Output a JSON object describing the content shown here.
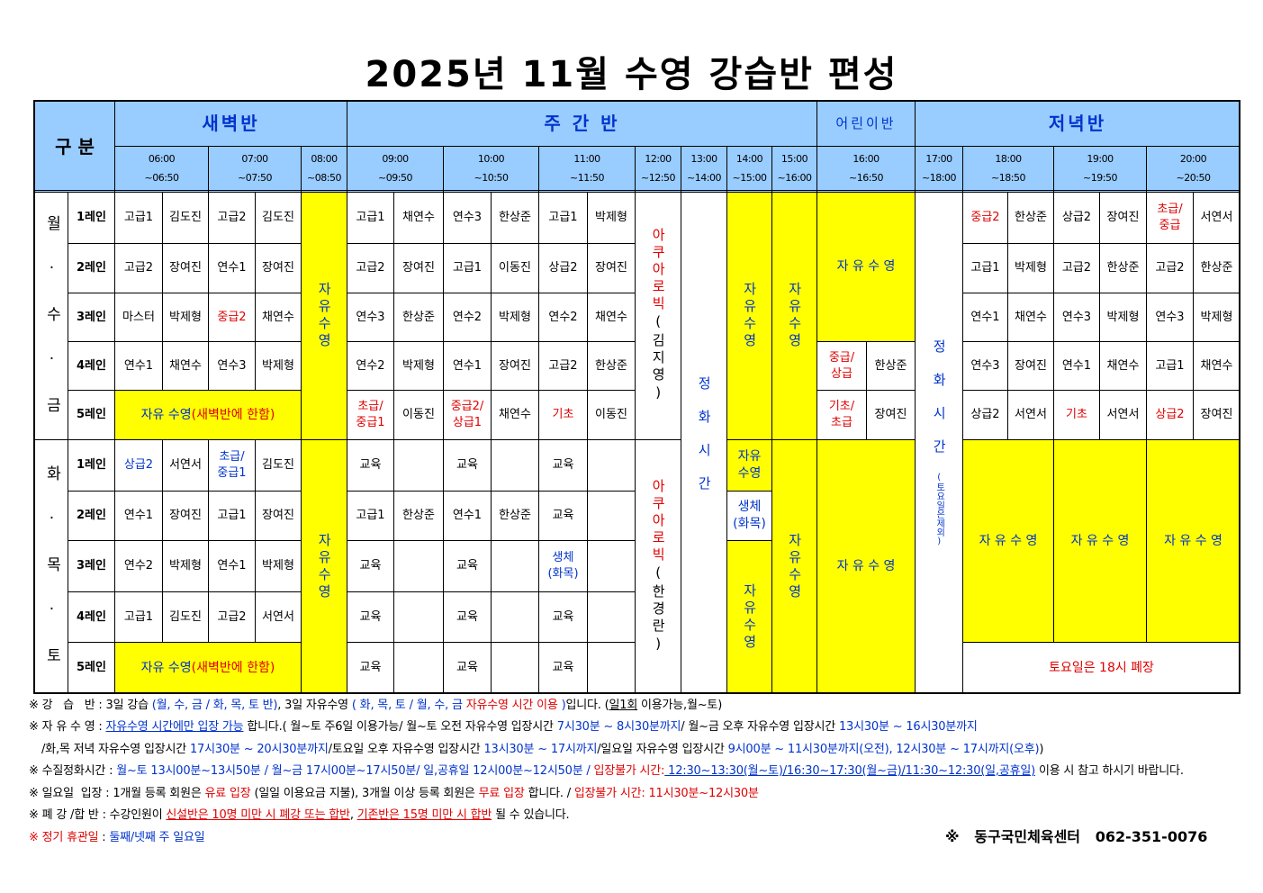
{
  "title": "2025년 11월 수영 강습반 편성",
  "header": {
    "category": "구 분",
    "sessions": [
      "새벽반",
      "주 간 반",
      "어린이반",
      "저녁반"
    ],
    "times": [
      {
        "start": "06:00",
        "end": "~06:50"
      },
      {
        "start": "07:00",
        "end": "~07:50"
      },
      {
        "start": "08:00",
        "end": "~08:50"
      },
      {
        "start": "09:00",
        "end": "~09:50"
      },
      {
        "start": "10:00",
        "end": "~10:50"
      },
      {
        "start": "11:00",
        "end": "~11:50"
      },
      {
        "start": "12:00",
        "end": "~12:50"
      },
      {
        "start": "13:00",
        "end": "~14:00"
      },
      {
        "start": "14:00",
        "end": "~15:00"
      },
      {
        "start": "15:00",
        "end": "~16:00"
      },
      {
        "start": "16:00",
        "end": "~16:50"
      },
      {
        "start": "17:00",
        "end": "~18:00"
      },
      {
        "start": "18:00",
        "end": "~18:50"
      },
      {
        "start": "19:00",
        "end": "~19:50"
      },
      {
        "start": "20:00",
        "end": "~20:50"
      }
    ]
  },
  "lanes": [
    "1레인",
    "2레인",
    "3레인",
    "4레인",
    "5레인"
  ],
  "groups": [
    {
      "days": "월 · 수 · 금",
      "rows": [
        [
          "고급1",
          "김도진",
          "고급2",
          "김도진",
          "고급1",
          "채연수",
          "연수3",
          "한상준",
          "고급1",
          "박제형",
          {
            "text": "중급2",
            "color": "#e00000"
          },
          "한상준",
          "상급2",
          "장여진",
          {
            "text": "초급/\n중급",
            "color": "#e00000"
          },
          "서연서"
        ],
        [
          "고급2",
          "장여진",
          "연수1",
          "장여진",
          "고급2",
          "장여진",
          "고급1",
          "이동진",
          "상급2",
          "장여진",
          "고급1",
          "박제형",
          "고급2",
          "한상준",
          "고급2",
          "한상준"
        ],
        [
          "마스터",
          "박제형",
          {
            "text": "중급2",
            "color": "#e00000"
          },
          "채연수",
          "연수3",
          "한상준",
          "연수2",
          "박제형",
          "연수2",
          "채연수",
          "연수1",
          "채연수",
          "연수3",
          "박제형",
          "연수3",
          "박제형"
        ],
        [
          "연수1",
          "채연수",
          "연수3",
          "박제형",
          "연수2",
          "박제형",
          "연수1",
          "장여진",
          "고급2",
          "한상준",
          {
            "text": "중급/\n상급",
            "color": "#e00000"
          },
          "한상준",
          "연수3",
          "장여진",
          "연수1",
          "채연수",
          "고급1",
          "채연수"
        ],
        [
          {
            "text": "초급/\n중급1",
            "color": "#e00000"
          },
          "이동진",
          {
            "text": "중급2/\n상급1",
            "color": "#e00000"
          },
          "채연수",
          {
            "text": "기초",
            "color": "#e00000"
          },
          "이동진",
          {
            "text": "기초/\n초급",
            "color": "#e00000"
          },
          "장여진",
          "상급2",
          "서연서",
          {
            "text": "기초",
            "color": "#e00000"
          },
          "서연서",
          {
            "text": "상급2",
            "color": "#e00000"
          },
          "장여진"
        ]
      ]
    },
    {
      "days": "화 · 목 · 토",
      "rows": [
        [
          {
            "text": "상급2",
            "color": "#0033cc"
          },
          "서연서",
          {
            "text": "초급/\n중급1",
            "color": "#0033cc"
          },
          "김도진",
          "교육",
          null,
          "교육",
          null,
          "교육",
          null
        ],
        [
          "연수1",
          "장여진",
          "고급1",
          "장여진",
          "고급1",
          "한상준",
          "연수1",
          "한상준",
          "교육",
          null
        ],
        [
          "연수2",
          "박제형",
          "연수1",
          "박제형",
          "교육",
          null,
          "교육",
          null,
          {
            "text": "생체\n(화목)",
            "color": "#0033cc"
          },
          null
        ],
        [
          "고급1",
          "김도진",
          "고급2",
          "서연서",
          "교육",
          null,
          "교육",
          null,
          "교육",
          null
        ],
        [
          "교육",
          null,
          "교육",
          null,
          "교육",
          null
        ]
      ]
    }
  ],
  "merged": [
    {
      "content": "자유수영",
      "color": "#0033cc"
    },
    {
      "content": [
        {
          "text": "아쿠아로빅",
          "color": "#e00000"
        },
        {
          "text": "(김지영)"
        }
      ]
    },
    {
      "content": "정화시간",
      "color": "#0033cc"
    },
    {
      "content": "자유수영",
      "color": "#0033cc"
    },
    {
      "content": "자유수영",
      "color": "#0033cc"
    },
    {
      "content": "자 유 수 영",
      "color": "#0033cc"
    },
    {
      "content": [
        {
          "text": "정화시간",
          "color": "#0033cc"
        },
        {
          "text": "(토요일은제외)",
          "color": "#0033cc",
          "small": true
        }
      ]
    },
    {
      "content": [
        {
          "text": "자유 수영 ",
          "color": "#0033cc"
        },
        {
          "text": "(새벽반에 한함)",
          "color": "#e00000"
        }
      ]
    },
    {
      "content": "자유수영",
      "color": "#0033cc"
    },
    {
      "content": [
        {
          "text": "아쿠아로빅",
          "color": "#e00000"
        },
        {
          "text": "(한경란)"
        }
      ]
    },
    {
      "content": "자유\n수영",
      "color": "#0033cc"
    },
    {
      "content": "생체\n(화목)",
      "color": "#0033cc"
    },
    {
      "content": "자유수영",
      "color": "#0033cc"
    },
    {
      "content": "자유수영",
      "color": "#0033cc"
    },
    {
      "content": "자 유 수 영",
      "color": "#0033cc"
    },
    {
      "content": "자 유 수 영",
      "color": "#0033cc"
    },
    {
      "content": "자 유 수 영",
      "color": "#0033cc"
    },
    {
      "content": "자 유 수 영",
      "color": "#0033cc"
    },
    {
      "content": [
        {
          "text": "자유 수영 ",
          "color": "#0033cc"
        },
        {
          "text": "(새벽반에 한함)",
          "color": "#e00000"
        }
      ]
    },
    {
      "content": "토요일은 18시 폐장",
      "color": "#e00000"
    }
  ],
  "notes": [
    [
      "※ 강   습   반 : 3일 강습 ",
      {
        "text": "(월, 수, 금 / 화, 목, 토 반)",
        "color": "#0033cc"
      },
      ", 3일 자유수영 ",
      {
        "text": "( 화, 목, 토 / 월, 수, 금 ",
        "color": "#0033cc"
      },
      {
        "text": "자유수영 시간 이용",
        "color": "#e00000"
      },
      {
        "text": " )",
        "color": "#0033cc"
      },
      "입니다. (",
      {
        "text": "일1회",
        "underline": true
      },
      " 이용가능,월~토)"
    ],
    [
      "※ 자 유 수 영 : ",
      {
        "text": "자유수영 시간에만 입장 가능",
        "color": "#0033cc",
        "underline": true
      },
      " 합니다.( 월~토 주6일 이용가능/ 월~토 오전 자유수영 입장시간 ",
      {
        "text": "7시30분 ~ 8시30분까지",
        "color": "#0033cc"
      },
      "/ 월~금 오후 자유수영 입장시간 ",
      {
        "text": "13시30분 ~ 16시30분까지",
        "color": "#0033cc"
      }
    ],
    [
      "/화,목 저녁 자유수영 입장시간 ",
      {
        "text": "17시30분 ~ 20시30분까지",
        "color": "#0033cc"
      },
      "/토요일 오후 자유수영 입장시간 ",
      {
        "text": "13시30분 ~ 17시까지",
        "color": "#0033cc"
      },
      "/일요일 자유수영 입장시간 ",
      {
        "text": "9시00분 ~ 11시30분까지(오전), 12시30분 ~ 17시까지(오후)",
        "color": "#0033cc"
      },
      ")"
    ],
    [
      "※ 수질정화시간 : ",
      {
        "text": "월~토 13시00분~13시50분 / 월~금 17시00분~17시50분/ 일,공휴일 12시00분~12시50분 / ",
        "color": "#0033cc"
      },
      {
        "text": "입장불가 시간:",
        "color": "#e00000"
      },
      {
        "text": " 12:30~13:30(월~토)/16:30~17:30(월~금)/11:30~12:30(일,공휴일)",
        "color": "#0033cc",
        "underline": true
      },
      " 이용 시 참고 하시기 바랍니다."
    ],
    [
      "※ 일요일  입장 : 1개월 등록 회원은 ",
      {
        "text": "유료 입장",
        "color": "#e00000"
      },
      " (일일 이용요금 지불), 3개월 이상 등록 회원은 ",
      {
        "text": "무료 입장",
        "color": "#e00000"
      },
      " 합니다. / ",
      {
        "text": "입장불가 시간: 11시30분~12시30분",
        "color": "#e00000"
      }
    ],
    [
      "※ 폐 강 /합 반 : 수강인원이 ",
      {
        "text": "신설반은 10명 미만 시 폐강 또는 합반",
        "color": "#e00000",
        "underline": true
      },
      ", ",
      {
        "text": "기존반은 15명 미만 시 합반",
        "color": "#e00000",
        "underline": true
      },
      " 될 수 있습니다."
    ],
    [
      {
        "text": "※ 정기 휴관일",
        "color": "#e00000"
      },
      " : ",
      {
        "text": "둘째/넷째 주 일요일",
        "color": "#0033cc"
      }
    ]
  ],
  "contact": "※   동구국민체육센터   062-351-0076"
}
